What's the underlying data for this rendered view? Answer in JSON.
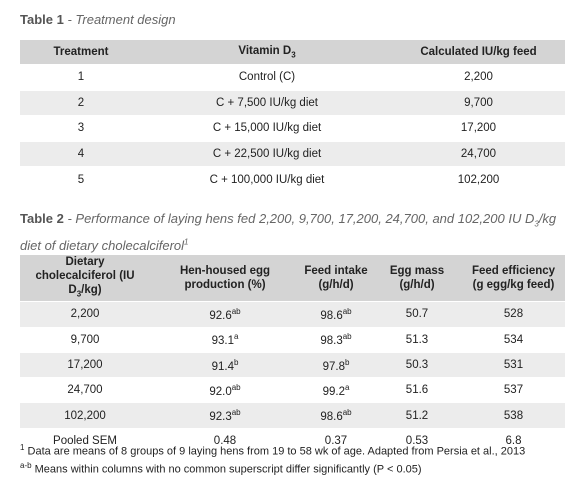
{
  "table1": {
    "label": "Table 1",
    "caption": "- Treatment design",
    "columns": [
      "Treatment",
      [
        {
          "text": "Vitamin D"
        },
        {
          "text": "3",
          "style": "sub"
        }
      ],
      "Calculated IU/kg feed"
    ],
    "rows": [
      [
        "1",
        "Control (C)",
        "2,200"
      ],
      [
        "2",
        "C + 7,500 IU/kg diet",
        "9,700"
      ],
      [
        "3",
        "C + 15,000 IU/kg diet",
        "17,200"
      ],
      [
        "4",
        "C + 22,500 IU/kg diet",
        "24,700"
      ],
      [
        "5",
        "C + 100,000 IU/kg diet",
        "102,200"
      ]
    ]
  },
  "table2": {
    "label": "Table 2",
    "caption": [
      {
        "text": "- Performance of laying hens fed 2,200, 9,700, 17,200, 24,700, and 102,200 IU D"
      },
      {
        "text": "3",
        "style": "sub"
      },
      {
        "text": "/kg diet of dietary cholecalciferol"
      },
      {
        "text": "1",
        "style": "sup"
      }
    ],
    "columns": [
      [
        {
          "text": "Dietary cholecalciferol (IU D"
        },
        {
          "text": "3",
          "style": "sub"
        },
        {
          "text": "/kg)"
        }
      ],
      "Hen-housed egg production (%)",
      "Feed intake (g/h/d)",
      "Egg mass (g/h/d)",
      "Feed efficiency (g egg/kg feed)"
    ],
    "rows": [
      [
        "2,200",
        [
          {
            "text": "92.6"
          },
          {
            "text": "ab",
            "style": "sup"
          }
        ],
        [
          {
            "text": "98.6"
          },
          {
            "text": "ab",
            "style": "sup"
          }
        ],
        "50.7",
        "528"
      ],
      [
        "9,700",
        [
          {
            "text": "93.1"
          },
          {
            "text": "a",
            "style": "sup"
          }
        ],
        [
          {
            "text": "98.3"
          },
          {
            "text": "ab",
            "style": "sup"
          }
        ],
        "51.3",
        "534"
      ],
      [
        "17,200",
        [
          {
            "text": "91.4"
          },
          {
            "text": "b",
            "style": "sup"
          }
        ],
        [
          {
            "text": "97.8"
          },
          {
            "text": "b",
            "style": "sup"
          }
        ],
        "50.3",
        "531"
      ],
      [
        "24,700",
        [
          {
            "text": "92.0"
          },
          {
            "text": "ab",
            "style": "sup"
          }
        ],
        [
          {
            "text": "99.2"
          },
          {
            "text": "a",
            "style": "sup"
          }
        ],
        "51.6",
        "537"
      ],
      [
        "102,200",
        [
          {
            "text": "92.3"
          },
          {
            "text": "ab",
            "style": "sup"
          }
        ],
        [
          {
            "text": "98.6"
          },
          {
            "text": "ab",
            "style": "sup"
          }
        ],
        "51.2",
        "538"
      ],
      [
        "Pooled SEM",
        "0.48",
        "0.37",
        "0.53",
        "6.8"
      ]
    ]
  },
  "footnotes": [
    [
      {
        "text": "1",
        "style": "sup"
      },
      {
        "text": " Data are means of 8 groups of 9 laying hens from 19 to 58 wk of age. Adapted from Persia et al., 2013"
      }
    ],
    [
      {
        "text": "a-b",
        "style": "sup"
      },
      {
        "text": " Means within columns with no common superscript differ significantly (P < 0.05)"
      }
    ]
  ]
}
